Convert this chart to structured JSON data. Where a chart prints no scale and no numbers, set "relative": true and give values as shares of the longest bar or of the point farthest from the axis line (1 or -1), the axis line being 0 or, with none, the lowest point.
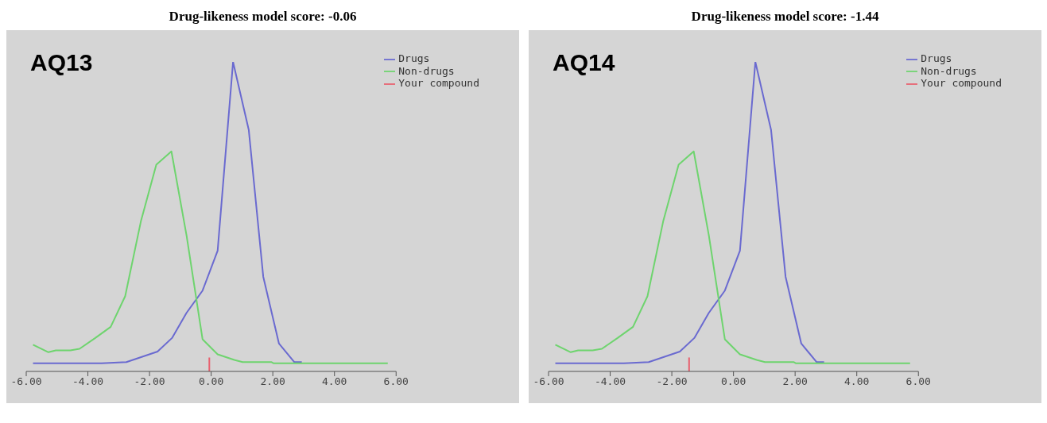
{
  "chart_data": [
    {
      "type": "line",
      "title": "Drug-likeness model score: -0.06",
      "annotations": [
        "AQ13"
      ],
      "relative": true,
      "legend": "top right",
      "marker": "none",
      "line_style": "solid",
      "xlim": [
        -6,
        6
      ],
      "xticks": [
        {
          "value": -6,
          "label": "-6.00"
        },
        {
          "value": -4,
          "label": "-4.00"
        },
        {
          "value": -2,
          "label": "-2.00"
        },
        {
          "value": 0,
          "label": "0.00"
        },
        {
          "value": 2,
          "label": "2.00"
        },
        {
          "value": 4,
          "label": "4.00"
        },
        {
          "value": 6,
          "label": "6.00"
        }
      ],
      "series": [
        {
          "name": "Drugs",
          "color": "#6a6ad0",
          "x": [
            -5.78,
            -3.56,
            -2.75,
            -1.74,
            -1.27,
            -0.8,
            -0.28,
            0.21,
            0.71,
            1.22,
            1.69,
            2.2,
            2.7,
            2.94
          ],
          "values": [
            0.026,
            0.026,
            0.03,
            0.064,
            0.108,
            0.189,
            0.261,
            0.39,
            1,
            0.78,
            0.306,
            0.09,
            0.03,
            0.03
          ]
        },
        {
          "name": "Non-drugs",
          "color": "#6ed46e",
          "x": [
            -5.78,
            -5.28,
            -5.04,
            -4.57,
            -4.27,
            -3.76,
            -3.26,
            -2.79,
            -2.28,
            -1.78,
            -1.29,
            -0.8,
            -0.28,
            0.21,
            0.75,
            1.02,
            1.96,
            2.03,
            5.73
          ],
          "values": [
            0.086,
            0.062,
            0.068,
            0.068,
            0.073,
            0.108,
            0.144,
            0.243,
            0.485,
            0.668,
            0.711,
            0.44,
            0.104,
            0.055,
            0.037,
            0.03,
            0.03,
            0.026,
            0.026
          ]
        },
        {
          "name": "Your compound",
          "color": "#e8606e",
          "x": [
            -0.06,
            -0.06
          ],
          "values": [
            0,
            0.045
          ]
        }
      ]
    },
    {
      "type": "line",
      "title": "Drug-likeness model score: -1.44",
      "annotations": [
        "AQ14"
      ],
      "relative": true,
      "legend": "top right",
      "marker": "none",
      "line_style": "solid",
      "xlim": [
        -6,
        6
      ],
      "xticks": [
        {
          "value": -6,
          "label": "-6.00"
        },
        {
          "value": -4,
          "label": "-4.00"
        },
        {
          "value": -2,
          "label": "-2.00"
        },
        {
          "value": 0,
          "label": "0.00"
        },
        {
          "value": 2,
          "label": "2.00"
        },
        {
          "value": 4,
          "label": "4.00"
        },
        {
          "value": 6,
          "label": "6.00"
        }
      ],
      "series": [
        {
          "name": "Drugs",
          "color": "#6a6ad0",
          "x": [
            -5.78,
            -3.56,
            -2.75,
            -1.74,
            -1.27,
            -0.8,
            -0.28,
            0.21,
            0.71,
            1.22,
            1.69,
            2.2,
            2.7,
            2.94
          ],
          "values": [
            0.026,
            0.026,
            0.03,
            0.064,
            0.108,
            0.189,
            0.261,
            0.39,
            1,
            0.78,
            0.306,
            0.09,
            0.03,
            0.03
          ]
        },
        {
          "name": "Non-drugs",
          "color": "#6ed46e",
          "x": [
            -5.78,
            -5.28,
            -5.04,
            -4.57,
            -4.27,
            -3.76,
            -3.26,
            -2.79,
            -2.28,
            -1.78,
            -1.29,
            -0.8,
            -0.28,
            0.21,
            0.75,
            1.02,
            1.96,
            2.03,
            5.73
          ],
          "values": [
            0.086,
            0.062,
            0.068,
            0.068,
            0.073,
            0.108,
            0.144,
            0.243,
            0.485,
            0.668,
            0.711,
            0.44,
            0.104,
            0.055,
            0.037,
            0.03,
            0.03,
            0.026,
            0.026
          ]
        },
        {
          "name": "Your compound",
          "color": "#e8606e",
          "x": [
            -1.44,
            -1.44
          ],
          "values": [
            0,
            0.045
          ]
        }
      ]
    }
  ]
}
